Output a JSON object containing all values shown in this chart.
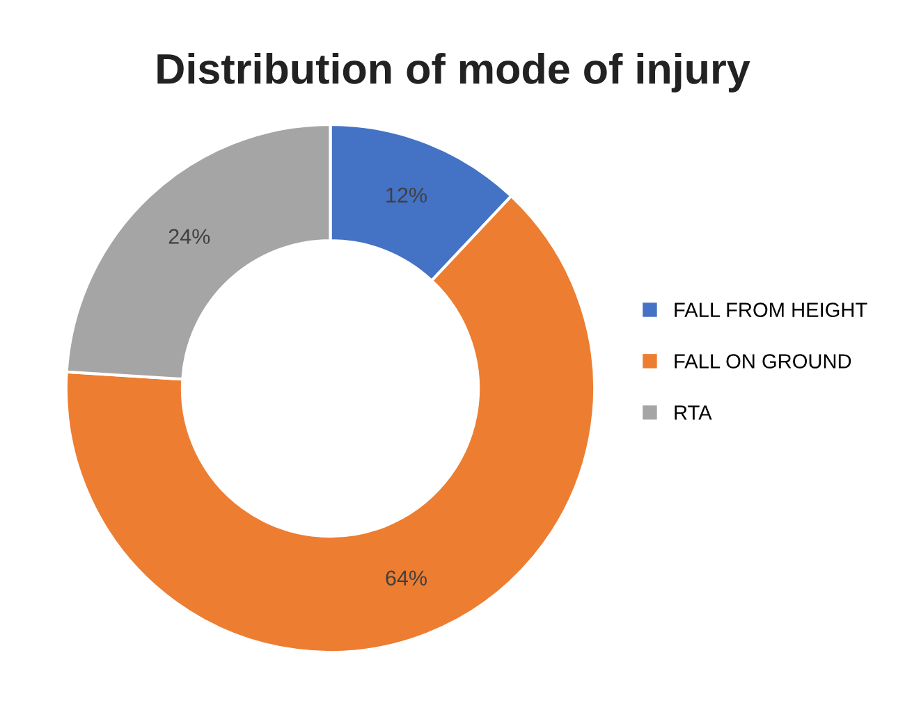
{
  "chart_data": {
    "type": "donut",
    "title": "Distribution of mode of injury",
    "categories": [
      "FALL FROM HEIGHT",
      "FALL ON GROUND",
      "RTA"
    ],
    "values": [
      12,
      64,
      24
    ],
    "colors": [
      "#4472c4",
      "#ed7d31",
      "#a5a5a5"
    ],
    "value_labels": [
      "12%",
      "64%",
      "24%"
    ],
    "legend": "right"
  }
}
